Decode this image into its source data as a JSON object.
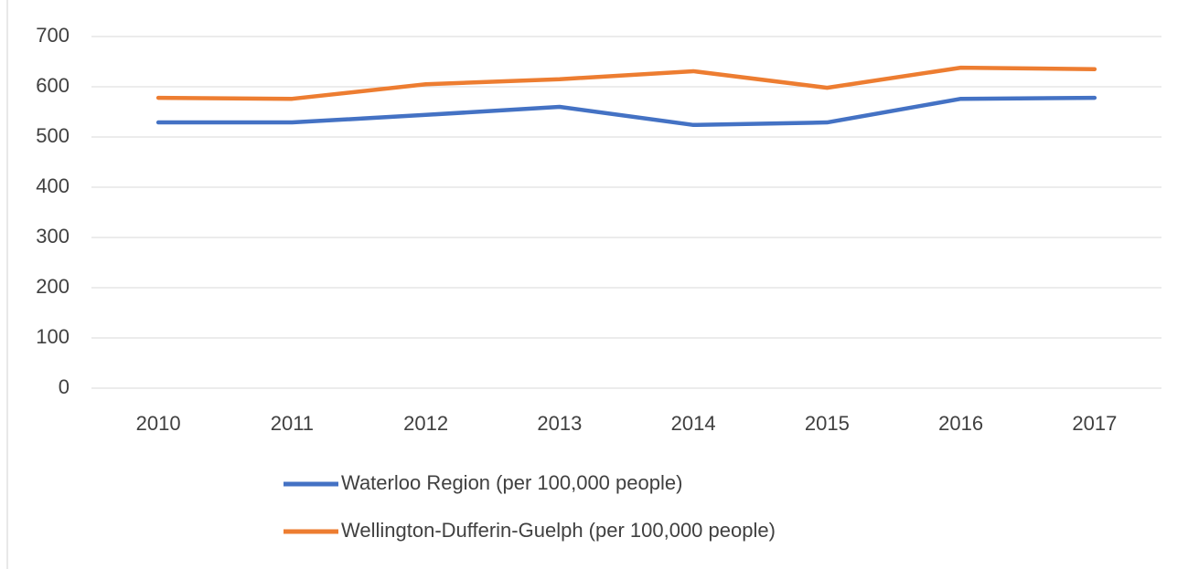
{
  "chart_data": {
    "type": "line",
    "categories": [
      "2010",
      "2011",
      "2012",
      "2013",
      "2014",
      "2015",
      "2016",
      "2017"
    ],
    "series": [
      {
        "name": "Waterloo Region (per 100,000 people)",
        "color": "#4472c4",
        "values": [
          529,
          529,
          544,
          560,
          524,
          529,
          576,
          578
        ]
      },
      {
        "name": "Wellington-Dufferin-Guelph (per 100,000 people)",
        "color": "#ed7d31",
        "values": [
          578,
          576,
          605,
          615,
          631,
          598,
          638,
          635
        ]
      }
    ],
    "ylim": [
      0,
      700
    ],
    "yticks": [
      0,
      100,
      200,
      300,
      400,
      500,
      600,
      700
    ],
    "grid": true,
    "legend": "bottom"
  }
}
